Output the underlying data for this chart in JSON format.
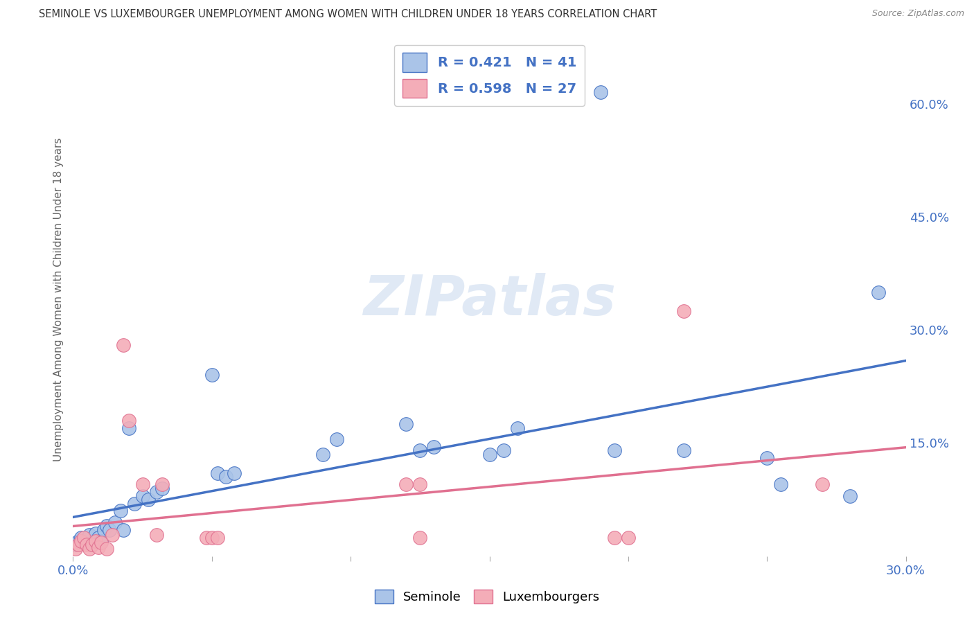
{
  "title": "SEMINOLE VS LUXEMBOURGER UNEMPLOYMENT AMONG WOMEN WITH CHILDREN UNDER 18 YEARS CORRELATION CHART",
  "source": "Source: ZipAtlas.com",
  "ylabel": "Unemployment Among Women with Children Under 18 years",
  "xlim": [
    0.0,
    0.3
  ],
  "ylim": [
    0.0,
    0.68
  ],
  "xticks": [
    0.0,
    0.05,
    0.1,
    0.15,
    0.2,
    0.25,
    0.3
  ],
  "xticklabels": [
    "0.0%",
    "",
    "",
    "",
    "",
    "",
    "30.0%"
  ],
  "yticks_right": [
    0.0,
    0.15,
    0.3,
    0.45,
    0.6
  ],
  "yticklabels_right": [
    "",
    "15.0%",
    "30.0%",
    "45.0%",
    "60.0%"
  ],
  "seminole_R": 0.421,
  "seminole_N": 41,
  "luxembourger_R": 0.598,
  "luxembourger_N": 27,
  "seminole_color": "#aac4e8",
  "luxembourger_color": "#f4adb8",
  "seminole_line_color": "#4472c4",
  "luxembourger_line_color": "#e07090",
  "watermark": "ZIPatlas",
  "seminole_x": [
    0.001,
    0.002,
    0.003,
    0.004,
    0.005,
    0.006,
    0.007,
    0.008,
    0.009,
    0.01,
    0.011,
    0.012,
    0.013,
    0.015,
    0.017,
    0.018,
    0.02,
    0.022,
    0.025,
    0.027,
    0.03,
    0.032,
    0.05,
    0.052,
    0.055,
    0.058,
    0.09,
    0.095,
    0.12,
    0.125,
    0.13,
    0.15,
    0.155,
    0.16,
    0.19,
    0.195,
    0.22,
    0.25,
    0.255,
    0.28,
    0.29
  ],
  "seminole_y": [
    0.015,
    0.02,
    0.025,
    0.018,
    0.022,
    0.028,
    0.015,
    0.03,
    0.025,
    0.02,
    0.035,
    0.04,
    0.035,
    0.045,
    0.06,
    0.035,
    0.17,
    0.07,
    0.08,
    0.075,
    0.085,
    0.09,
    0.24,
    0.11,
    0.105,
    0.11,
    0.135,
    0.155,
    0.175,
    0.14,
    0.145,
    0.135,
    0.14,
    0.17,
    0.615,
    0.14,
    0.14,
    0.13,
    0.095,
    0.08,
    0.35
  ],
  "luxembourger_x": [
    0.001,
    0.002,
    0.003,
    0.004,
    0.005,
    0.006,
    0.007,
    0.008,
    0.009,
    0.01,
    0.012,
    0.014,
    0.018,
    0.02,
    0.025,
    0.03,
    0.032,
    0.048,
    0.05,
    0.052,
    0.12,
    0.125,
    0.125,
    0.195,
    0.2,
    0.22,
    0.27
  ],
  "luxembourger_y": [
    0.01,
    0.015,
    0.02,
    0.025,
    0.015,
    0.01,
    0.015,
    0.02,
    0.012,
    0.018,
    0.01,
    0.028,
    0.28,
    0.18,
    0.095,
    0.028,
    0.095,
    0.025,
    0.025,
    0.025,
    0.095,
    0.095,
    0.025,
    0.025,
    0.025,
    0.325,
    0.095
  ],
  "background_color": "#ffffff",
  "grid_color": "#cccccc",
  "title_color": "#333333",
  "axis_label_color": "#666666",
  "tick_label_color": "#4472c4",
  "legend_label_color": "#333333"
}
